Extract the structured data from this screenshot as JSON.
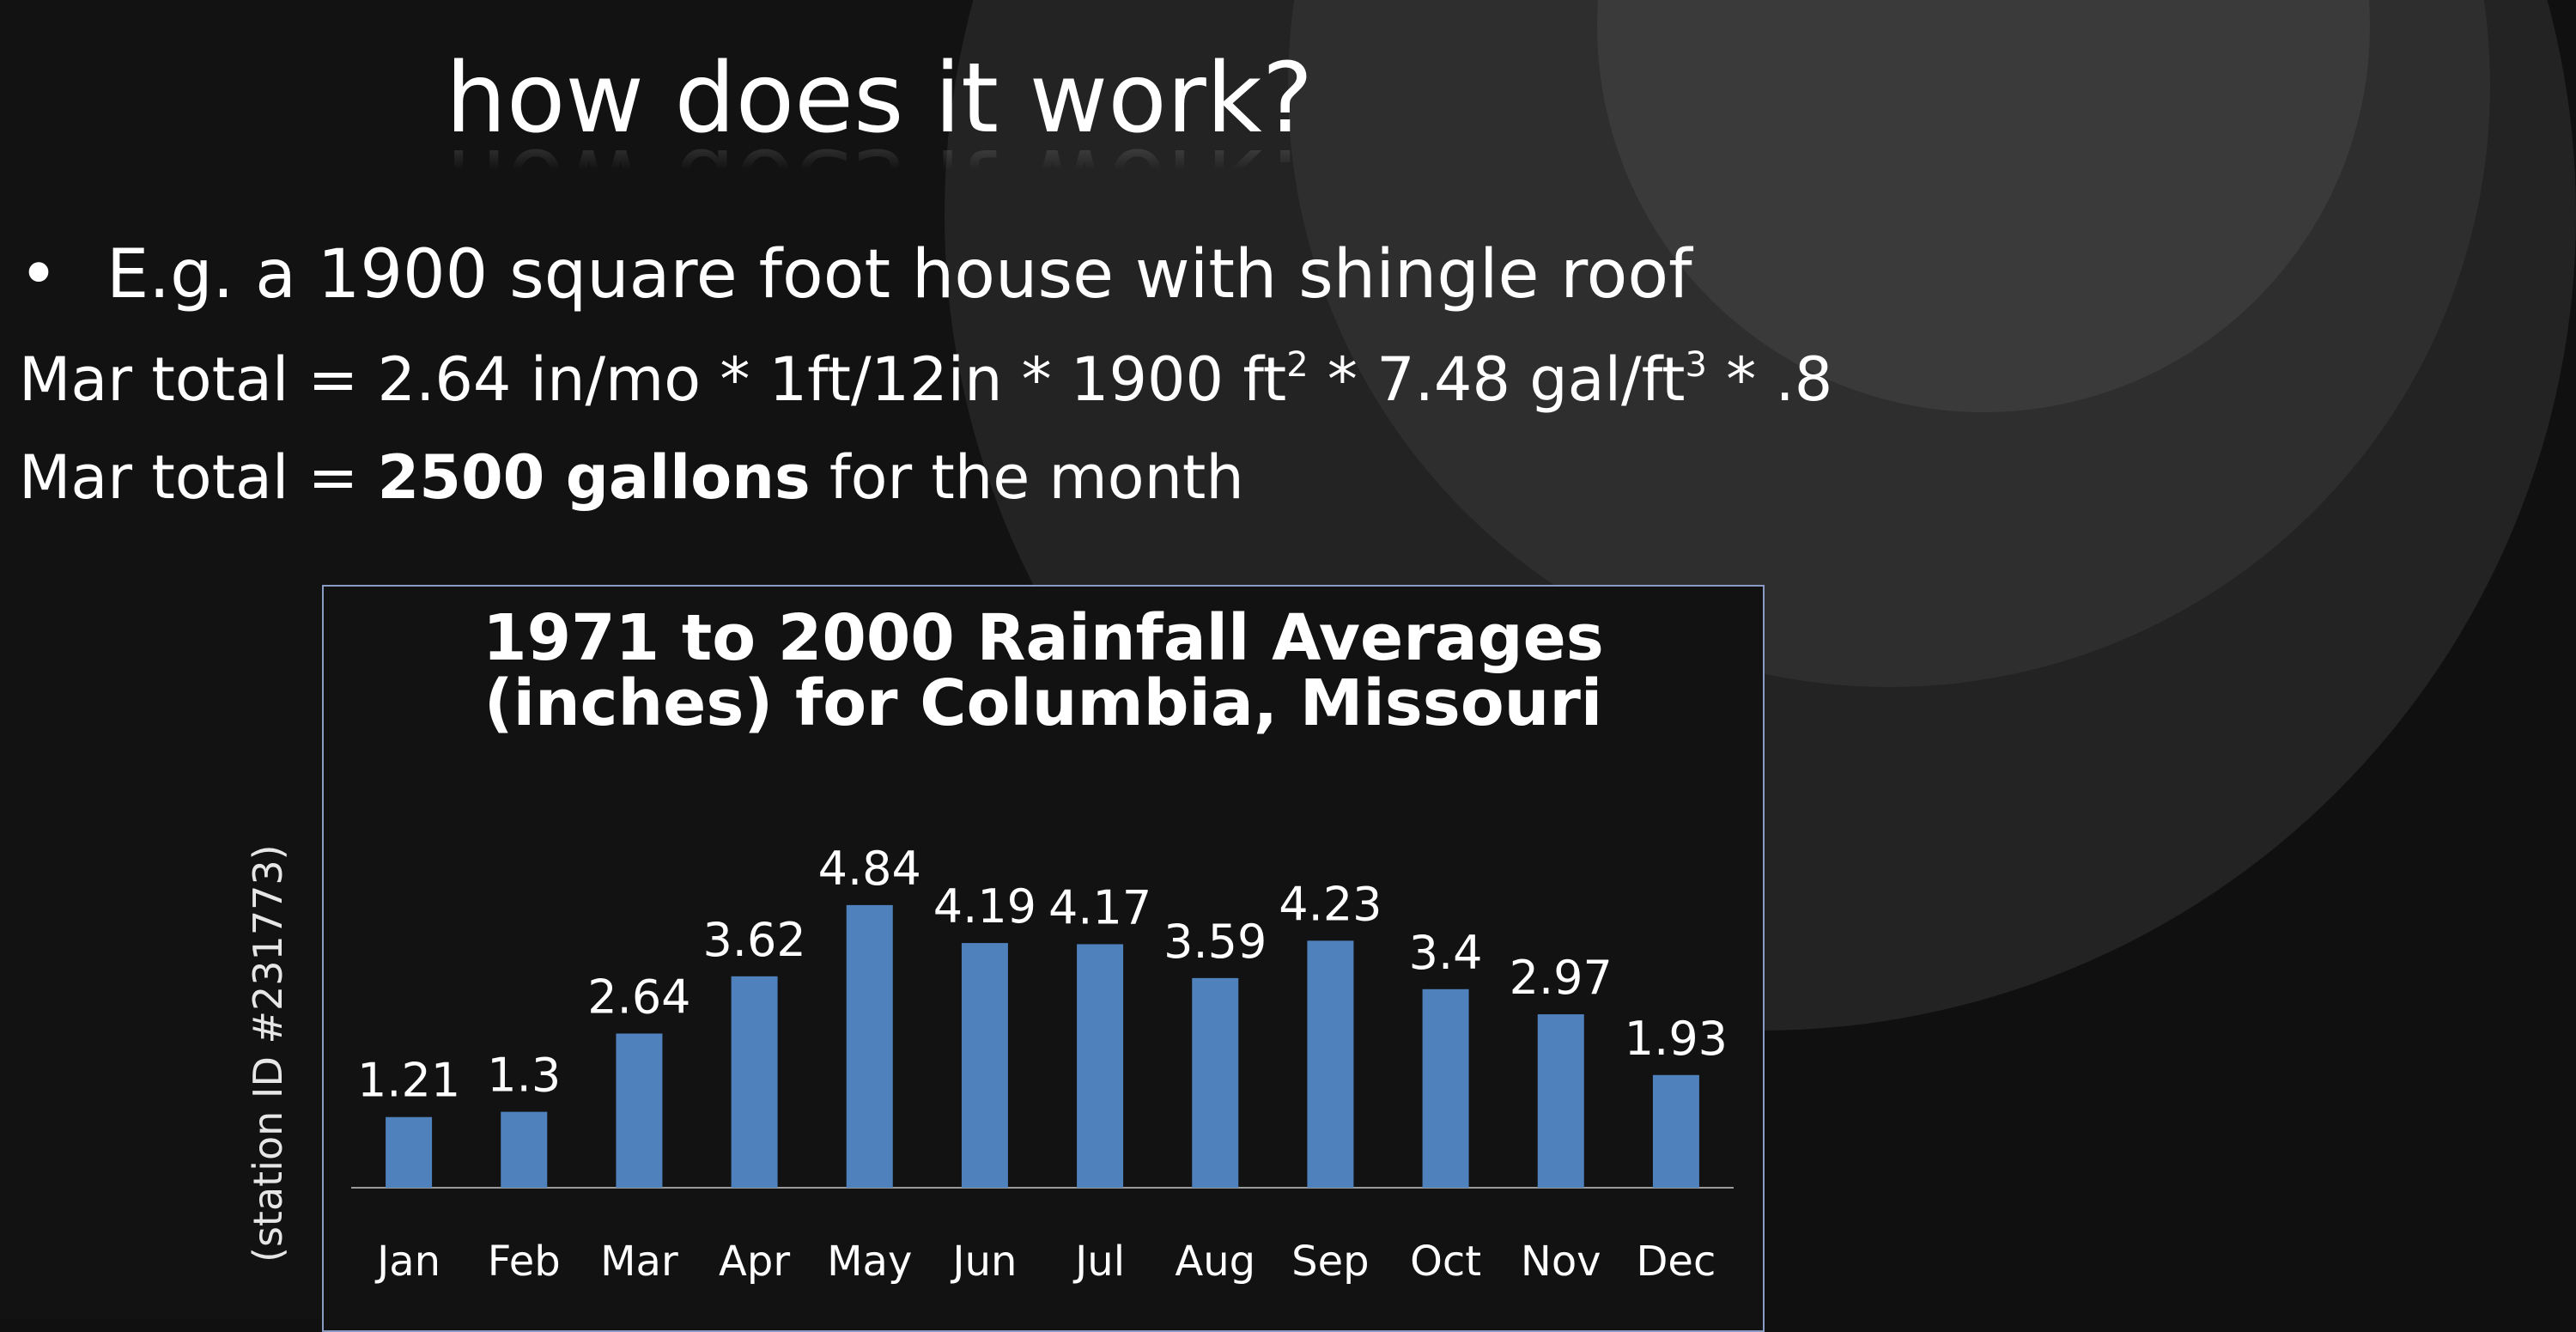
{
  "slide": {
    "title": "how does it work?",
    "bullet_symbol": "•",
    "bullet_text": "E.g. a 1900 square foot house with shingle roof",
    "formula": {
      "prefix": "Mar total = 2.64 in/mo * 1ft/12in * 1900 ft",
      "exp1": "2",
      "middle": " * 7.48 gal/ft",
      "exp2": "3",
      "suffix": " * .8"
    },
    "result": {
      "prefix": "Mar total = ",
      "bold": "2500 gallons",
      "suffix": " for the month"
    },
    "side_label": "(station ID #231773)"
  },
  "colors": {
    "bar": "#4f81bd",
    "background": "#121212",
    "chart_border": "#8a9bc4"
  },
  "chart_data": {
    "type": "bar",
    "title_line1": "1971 to 2000 Rainfall Averages",
    "title_line2": "(inches) for Columbia, Missouri",
    "categories": [
      "Jan",
      "Feb",
      "Mar",
      "Apr",
      "May",
      "Jun",
      "Jul",
      "Aug",
      "Sep",
      "Oct",
      "Nov",
      "Dec"
    ],
    "values": [
      1.21,
      1.3,
      2.64,
      3.62,
      4.84,
      4.19,
      4.17,
      3.59,
      4.23,
      3.4,
      2.97,
      1.93
    ],
    "data_labels": [
      "1.21",
      "1.3",
      "2.64",
      "3.62",
      "4.84",
      "4.19",
      "4.17",
      "3.59",
      "4.23",
      "3.4",
      "2.97",
      "1.93"
    ],
    "xlabel": "",
    "ylabel": "",
    "ylim": [
      0,
      5
    ],
    "grid": false,
    "legend": "none"
  }
}
